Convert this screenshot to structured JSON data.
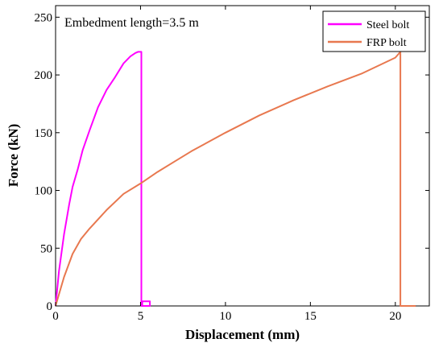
{
  "chart_data": {
    "type": "line",
    "xlabel": "Displacement (mm)",
    "ylabel": "Force (kN)",
    "xlim": [
      0,
      22
    ],
    "ylim": [
      0,
      260
    ],
    "xticks": [
      0,
      5,
      10,
      15,
      20
    ],
    "yticks": [
      0,
      50,
      100,
      150,
      200,
      250
    ],
    "grid": false,
    "legend_position": "top-right",
    "annotation": "Embedment length=3.5 m",
    "series": [
      {
        "name": "Steel bolt",
        "color": "#ff00ff",
        "x": [
          0,
          0.2,
          0.5,
          0.8,
          1.0,
          1.3,
          1.6,
          2.0,
          2.5,
          3.0,
          3.5,
          4.0,
          4.4,
          4.7,
          4.85,
          5.05,
          5.05,
          5.1,
          5.1,
          5.55,
          5.55,
          5.1
        ],
        "y": [
          0,
          30,
          62,
          88,
          103,
          118,
          135,
          152,
          172,
          187,
          198,
          210,
          216,
          219,
          220,
          220,
          0,
          0,
          4,
          4,
          0,
          0
        ]
      },
      {
        "name": "FRP bolt",
        "color": "#e8784f",
        "x": [
          0,
          0.5,
          1.0,
          1.5,
          2.0,
          3.0,
          4.0,
          5.0,
          6.0,
          7.0,
          8.0,
          10.0,
          12.0,
          14.0,
          16.0,
          18.0,
          20.0,
          20.3,
          20.3,
          21.2
        ],
        "y": [
          0,
          25,
          45,
          58,
          67,
          83,
          97,
          106,
          116,
          125,
          134,
          150,
          165,
          178,
          190,
          201,
          215,
          220,
          0,
          0
        ]
      }
    ]
  }
}
